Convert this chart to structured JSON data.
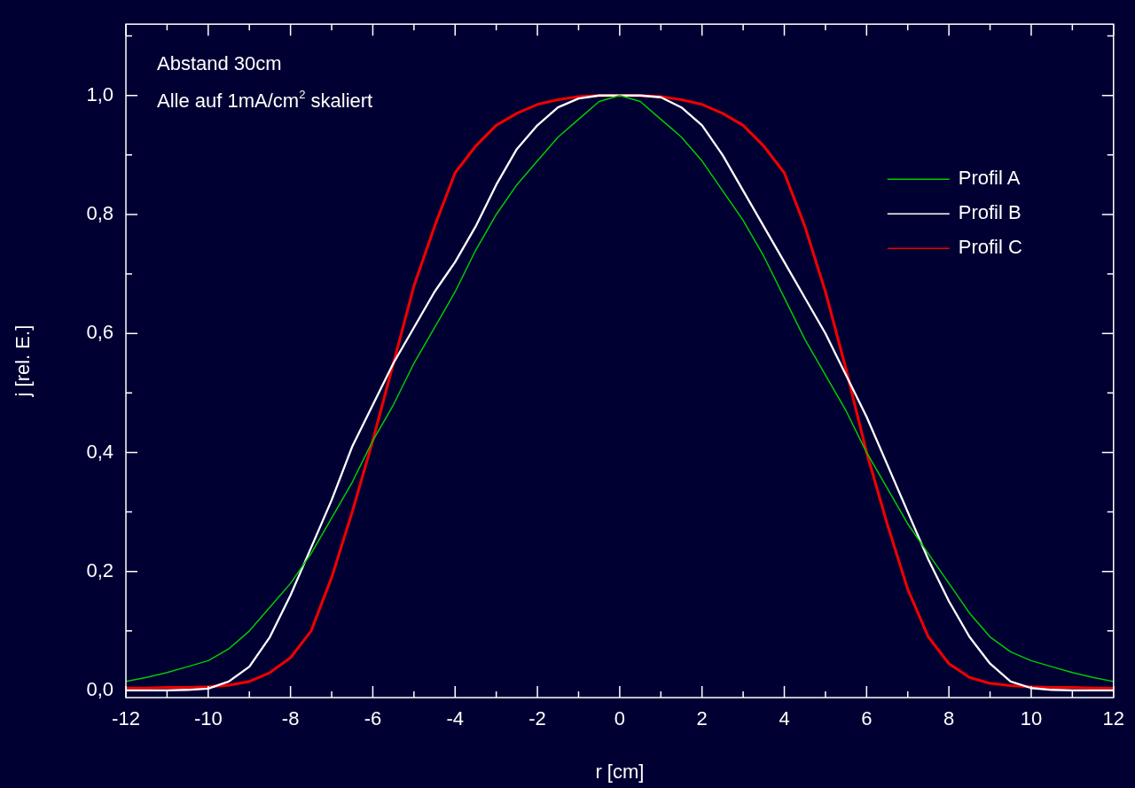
{
  "chart_data": {
    "type": "line",
    "xlabel": "r [cm]",
    "ylabel": "j [rel. E.]",
    "annotations": [
      "Abstand 30cm",
      "Alle auf 1mA/cm$^{2}$ skaliert"
    ],
    "x": [
      -12,
      -11.5,
      -11,
      -10.5,
      -10,
      -9.5,
      -9,
      -8.5,
      -8,
      -7.5,
      -7,
      -6.5,
      -6,
      -5.5,
      -5,
      -4.5,
      -4,
      -3.5,
      -3,
      -2.5,
      -2,
      -1.5,
      -1,
      -0.5,
      0,
      0.5,
      1,
      1.5,
      2,
      2.5,
      3,
      3.5,
      4,
      4.5,
      5,
      5.5,
      6,
      6.5,
      7,
      7.5,
      8,
      8.5,
      9,
      9.5,
      10,
      10.5,
      11,
      11.5,
      12
    ],
    "series": [
      {
        "name": "Profil A",
        "color": "#00cc00",
        "values": [
          0.015,
          0.022,
          0.03,
          0.04,
          0.05,
          0.07,
          0.1,
          0.14,
          0.18,
          0.23,
          0.29,
          0.35,
          0.42,
          0.48,
          0.55,
          0.61,
          0.67,
          0.74,
          0.8,
          0.85,
          0.89,
          0.93,
          0.96,
          0.99,
          1.0,
          0.99,
          0.96,
          0.93,
          0.89,
          0.84,
          0.79,
          0.73,
          0.66,
          0.59,
          0.53,
          0.47,
          0.4,
          0.34,
          0.28,
          0.23,
          0.18,
          0.13,
          0.09,
          0.065,
          0.05,
          0.04,
          0.03,
          0.022,
          0.015
        ]
      },
      {
        "name": "Profil B",
        "color": "#ffffff",
        "values": [
          0,
          0,
          0,
          0.001,
          0.003,
          0.015,
          0.04,
          0.09,
          0.16,
          0.24,
          0.32,
          0.41,
          0.48,
          0.55,
          0.61,
          0.67,
          0.72,
          0.78,
          0.85,
          0.91,
          0.95,
          0.98,
          0.995,
          1.0,
          1.0,
          1.0,
          0.997,
          0.98,
          0.95,
          0.9,
          0.84,
          0.78,
          0.72,
          0.66,
          0.6,
          0.53,
          0.46,
          0.38,
          0.3,
          0.22,
          0.15,
          0.09,
          0.045,
          0.015,
          0.004,
          0.001,
          0,
          0,
          0
        ]
      },
      {
        "name": "Profil C",
        "color": "#ee0000",
        "values": [
          0.004,
          0.004,
          0.005,
          0.005,
          0.006,
          0.009,
          0.015,
          0.03,
          0.055,
          0.1,
          0.19,
          0.3,
          0.42,
          0.55,
          0.68,
          0.78,
          0.87,
          0.915,
          0.95,
          0.97,
          0.985,
          0.993,
          0.998,
          1.0,
          1.0,
          1.0,
          0.998,
          0.993,
          0.985,
          0.97,
          0.95,
          0.915,
          0.87,
          0.78,
          0.67,
          0.54,
          0.4,
          0.28,
          0.17,
          0.09,
          0.045,
          0.022,
          0.012,
          0.008,
          0.006,
          0.005,
          0.005,
          0.004,
          0.004
        ]
      }
    ],
    "xlim": [
      -12,
      12
    ],
    "xticks": [
      -12,
      {
        "value": -11,
        "label": null
      },
      -10,
      {
        "value": -9,
        "label": null
      },
      -8,
      {
        "value": -7,
        "label": null
      },
      -6,
      {
        "value": -5,
        "label": null
      },
      -4,
      {
        "value": -3,
        "label": null
      },
      -2,
      {
        "value": -1,
        "label": null
      },
      0,
      {
        "value": 1,
        "label": null
      },
      2,
      {
        "value": 3,
        "label": null
      },
      4,
      {
        "value": 5,
        "label": null
      },
      6,
      {
        "value": 7,
        "label": null
      },
      8,
      {
        "value": 9,
        "label": null
      },
      10,
      {
        "value": 11,
        "label": null
      },
      12
    ],
    "ylim": [
      -0.012,
      1.12
    ],
    "yticks": [
      {
        "value": 0,
        "label": "0,0"
      },
      {
        "value": 0.1,
        "label": null
      },
      {
        "value": 0.2,
        "label": "0,2"
      },
      {
        "value": 0.3,
        "label": null
      },
      {
        "value": 0.4,
        "label": "0,4"
      },
      {
        "value": 0.5,
        "label": null
      },
      {
        "value": 0.6,
        "label": "0,6"
      },
      {
        "value": 0.7,
        "label": null
      },
      {
        "value": 0.8,
        "label": "0,8"
      },
      {
        "value": 0.9,
        "label": null
      },
      {
        "value": 1.0,
        "label": "1,0"
      },
      {
        "value": 1.1,
        "label": null
      }
    ],
    "grid": false,
    "legend": "top right",
    "marker": "none",
    "line_style": "solid"
  }
}
